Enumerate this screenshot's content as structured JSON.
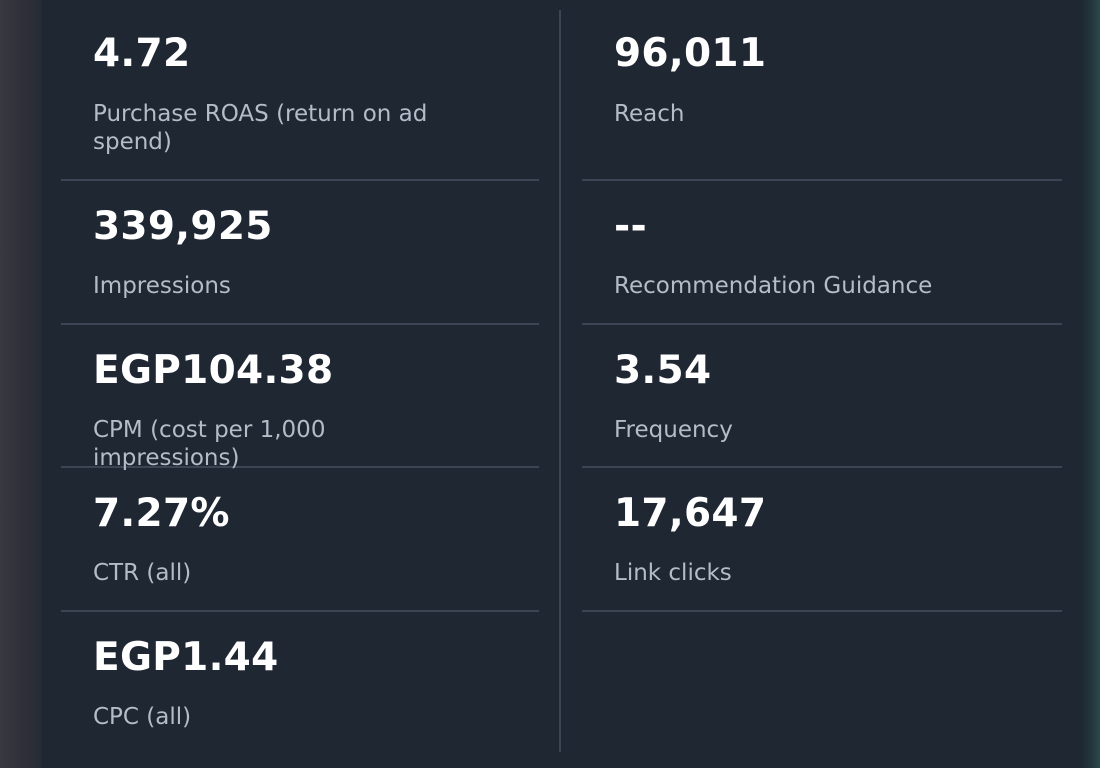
{
  "metrics_left": [
    {
      "value": "4.72",
      "label": "Purchase ROAS (return on ad spend)"
    },
    {
      "value": "339,925",
      "label": "Impressions"
    },
    {
      "value": "EGP104.38",
      "label": "CPM (cost per 1,000 impressions)"
    },
    {
      "value": "7.27%",
      "label": "CTR (all)"
    },
    {
      "value": "EGP1.44",
      "label": "CPC (all)"
    }
  ],
  "metrics_right": [
    {
      "value": "96,011",
      "label": "Reach"
    },
    {
      "value": "--",
      "label": "Recommendation Guidance"
    },
    {
      "value": "3.54",
      "label": "Frequency"
    },
    {
      "value": "17,647",
      "label": "Link clicks"
    }
  ],
  "colors": {
    "panel_background": "#1f2733",
    "value_text": "#ffffff",
    "label_text": "#b3bcc7",
    "divider": "#3b4553"
  }
}
